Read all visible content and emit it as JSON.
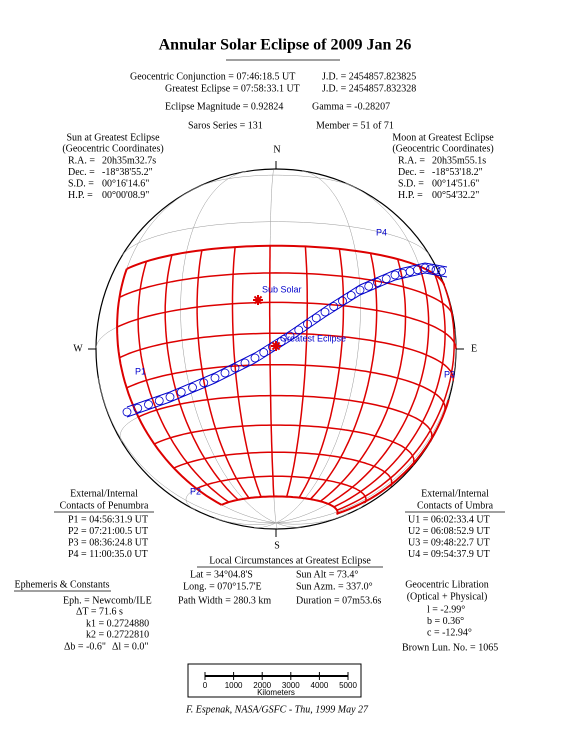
{
  "header": {
    "title": "Annular Solar Eclipse of 2009 Jan 26",
    "rows": [
      [
        "Geocentric Conjunction = 07:46:18.5 UT",
        "J.D. = 2454857.823825"
      ],
      [
        "Greatest Eclipse = 07:58:33.1 UT",
        "J.D. = 2454857.832328"
      ],
      [
        "Eclipse Magnitude = 0.92824",
        "Gamma = -0.28207"
      ],
      [
        "Saros Series = 131",
        "Member = 51 of 71"
      ]
    ]
  },
  "sun": {
    "title": [
      "Sun at Greatest Eclipse",
      "(Geocentric Coordinates)"
    ],
    "rows": [
      [
        "R.A. =",
        "20h35m32.7s"
      ],
      [
        "Dec. =",
        "-18°38'55.2\""
      ],
      [
        "S.D. =",
        "00°16'14.6\""
      ],
      [
        "H.P. =",
        "00°00'08.9\""
      ]
    ]
  },
  "moon": {
    "title": [
      "Moon at Greatest Eclipse",
      "(Geocentric Coordinates)"
    ],
    "rows": [
      [
        "R.A. =",
        "20h35m55.1s"
      ],
      [
        "Dec. =",
        "-18°53'18.2\""
      ],
      [
        "S.D. =",
        "00°14'51.6\""
      ],
      [
        "H.P. =",
        "00°54'32.2\""
      ]
    ]
  },
  "compass": {
    "n": "N",
    "s": "S",
    "w": "W",
    "e": "E"
  },
  "map_labels": {
    "sub_solar": "Sub Solar",
    "greatest_eclipse": "Greatest Eclipse",
    "p1": "P1",
    "p2": "P2",
    "p3": "P3",
    "p4": "P4"
  },
  "penumbra": {
    "title": [
      "External/Internal",
      "Contacts of Penumbra"
    ],
    "rows": [
      "P1 = 04:56:31.9 UT",
      "P2 = 07:21:00.5 UT",
      "P3 = 08:36:24.8 UT",
      "P4 = 11:00:35.0 UT"
    ]
  },
  "umbra": {
    "title": [
      "External/Internal",
      "Contacts of Umbra"
    ],
    "rows": [
      "U1 = 06:02:33.4 UT",
      "U2 = 06:08:52.9 UT",
      "U3 = 09:48:22.7 UT",
      "U4 = 09:54:37.9 UT"
    ]
  },
  "local": {
    "title": "Local Circumstances at Greatest Eclipse",
    "rows": [
      [
        "Lat = 34°04.8'S",
        "Sun Alt = 73.4°"
      ],
      [
        "Long. = 070°15.7'E",
        "Sun Azm. = 337.0°"
      ],
      [
        "Path Width = 280.3 km",
        "Duration = 07m53.6s"
      ]
    ]
  },
  "ephemeris": {
    "title": "Ephemeris & Constants",
    "rows": [
      "Eph. = Newcomb/ILE",
      "ΔT = 71.6 s",
      "k1 = 0.2724880",
      "k2 = 0.2722810",
      "Δb = -0.6\"",
      "Δl = 0.0\""
    ]
  },
  "libration": {
    "title": [
      "Geocentric Libration",
      "(Optical + Physical)"
    ],
    "rows": [
      "l = -2.99°",
      "b = 0.36°",
      "c = -12.94°"
    ],
    "lunation": "Brown Lun. No. = 1065"
  },
  "scale": {
    "ticks": [
      0,
      1000,
      2000,
      3000,
      4000,
      5000
    ],
    "unit": "Kilometers"
  },
  "footer": "F. Espenak, NASA/GSFC - Thu, 1999 May 27"
}
